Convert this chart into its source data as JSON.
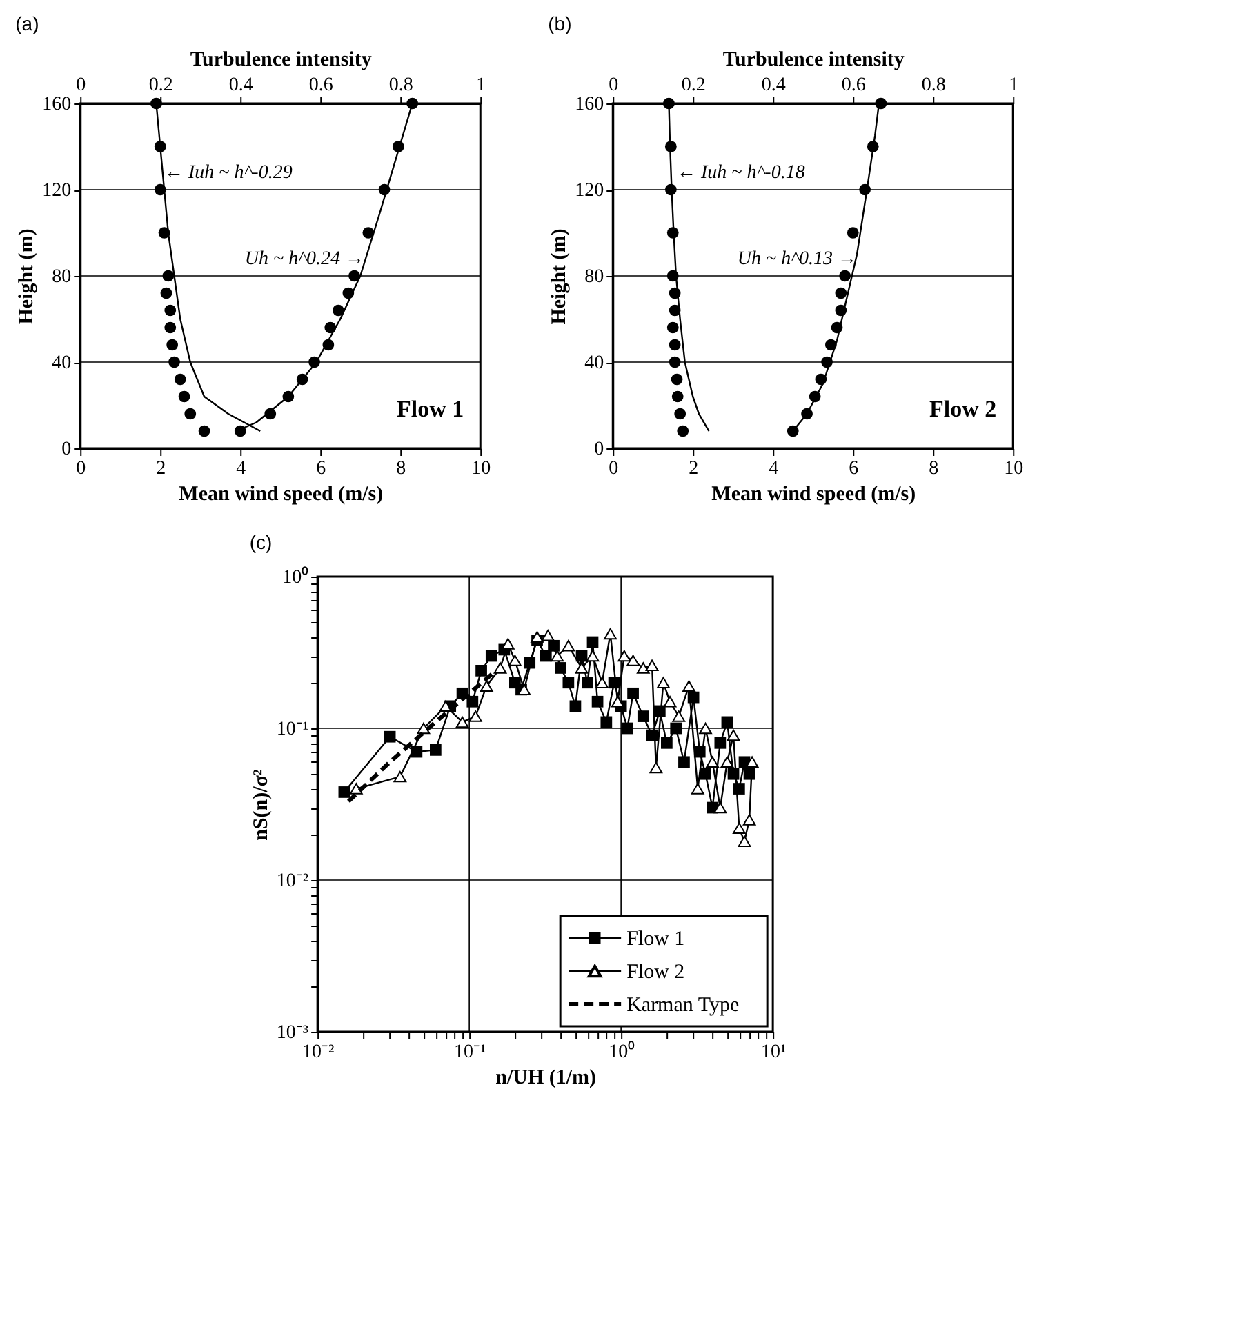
{
  "chart_data": [
    {
      "type": "scatter",
      "title": "(a)",
      "xlabel": "Mean wind speed (m/s)",
      "x2label": "Turbulence intensity",
      "ylabel": "Height (m)",
      "xlim": [
        0,
        10
      ],
      "xticks": [
        0,
        2,
        4,
        6,
        8,
        10
      ],
      "x2lim": [
        0,
        1
      ],
      "x2ticks": [
        0,
        0.2,
        0.4,
        0.6,
        0.8,
        1
      ],
      "ylim": [
        0,
        160
      ],
      "yticks": [
        0,
        40,
        80,
        120,
        160
      ],
      "grid": "y",
      "series": [
        {
          "axis": "x2",
          "color": "#000000",
          "marker": "circle",
          "x": [
            0.19,
            0.2,
            0.2,
            0.21,
            0.22,
            0.215,
            0.225,
            0.225,
            0.23,
            0.235,
            0.25,
            0.26,
            0.275,
            0.31
          ],
          "values": [
            160,
            140,
            120,
            100,
            80,
            72,
            64,
            56,
            48,
            40,
            32,
            24,
            16,
            8
          ]
        },
        {
          "color": "#000000",
          "marker": "circle",
          "x": [
            8.3,
            7.95,
            7.6,
            7.2,
            6.85,
            6.7,
            6.45,
            6.25,
            6.2,
            5.85,
            5.55,
            5.2,
            4.75,
            4.0
          ],
          "values": [
            160,
            140,
            120,
            100,
            80,
            72,
            64,
            56,
            48,
            40,
            32,
            24,
            16,
            8
          ]
        },
        {
          "type": "line",
          "axis": "x2",
          "color": "#000000",
          "marker": "none",
          "x": [
            0.19,
            0.2,
            0.21,
            0.22,
            0.235,
            0.25,
            0.275,
            0.31,
            0.37,
            0.45
          ],
          "values": [
            160,
            140,
            120,
            100,
            80,
            60,
            40,
            24,
            16,
            8
          ]
        },
        {
          "type": "line",
          "color": "#000000",
          "marker": "none",
          "x": [
            3.9,
            4.4,
            5.2,
            5.9,
            6.5,
            7.0,
            7.5,
            7.9,
            8.3
          ],
          "values": [
            8,
            12,
            24,
            40,
            60,
            80,
            110,
            135,
            160
          ]
        }
      ],
      "annotations": [
        {
          "text": "← Iuh ~ h^-0.29",
          "x": 2.1,
          "y": 128
        },
        {
          "text": "Uh ~ h^0.24 →",
          "x": 7.1,
          "y": 88
        },
        "Flow 1"
      ]
    },
    {
      "type": "scatter",
      "title": "(b)",
      "xlabel": "Mean wind speed (m/s)",
      "x2label": "Turbulence intensity",
      "ylabel": "Height (m)",
      "xlim": [
        0,
        10
      ],
      "xticks": [
        0,
        2,
        4,
        6,
        8,
        10
      ],
      "x2lim": [
        0,
        1
      ],
      "x2ticks": [
        0,
        0.2,
        0.4,
        0.6,
        0.8,
        1
      ],
      "ylim": [
        0,
        160
      ],
      "yticks": [
        0,
        40,
        80,
        120,
        160
      ],
      "grid": "y",
      "series": [
        {
          "axis": "x2",
          "color": "#000000",
          "marker": "circle",
          "x": [
            0.14,
            0.145,
            0.145,
            0.15,
            0.15,
            0.155,
            0.155,
            0.15,
            0.155,
            0.155,
            0.16,
            0.162,
            0.168,
            0.175
          ],
          "values": [
            160,
            140,
            120,
            100,
            80,
            72,
            64,
            56,
            48,
            40,
            32,
            24,
            16,
            8
          ]
        },
        {
          "color": "#000000",
          "marker": "circle",
          "x": [
            6.7,
            6.5,
            6.3,
            6.0,
            5.8,
            5.7,
            5.7,
            5.6,
            5.45,
            5.35,
            5.2,
            5.05,
            4.85,
            4.5
          ],
          "values": [
            160,
            140,
            120,
            100,
            80,
            72,
            64,
            56,
            48,
            40,
            32,
            24,
            16,
            8
          ]
        },
        {
          "type": "line",
          "axis": "x2",
          "color": "#000000",
          "marker": "none",
          "x": [
            0.14,
            0.143,
            0.147,
            0.152,
            0.158,
            0.168,
            0.18,
            0.2,
            0.215,
            0.24
          ],
          "values": [
            160,
            140,
            120,
            100,
            80,
            60,
            40,
            24,
            16,
            8
          ]
        },
        {
          "type": "line",
          "color": "#000000",
          "marker": "none",
          "x": [
            4.5,
            4.85,
            5.25,
            5.6,
            5.85,
            6.1,
            6.35,
            6.55,
            6.65
          ],
          "values": [
            8,
            16,
            30,
            50,
            70,
            90,
            120,
            145,
            160
          ]
        }
      ],
      "annotations": [
        {
          "text": "← Iuh ~ h^-0.18",
          "x": 1.6,
          "y": 128
        },
        {
          "text": "Uh ~ h^0.13 →",
          "x": 6.1,
          "y": 88
        },
        "Flow 2"
      ]
    },
    {
      "type": "line",
      "title": "(c)",
      "xlabel": "n/UH (1/m)",
      "ylabel": "nS(n)/σ²",
      "log": "xy",
      "grid": true,
      "legend": "bottom right",
      "xlim": [
        0.01,
        10
      ],
      "ylim": [
        0.001,
        1
      ],
      "xticks": [
        {
          "value": 0.01,
          "label": "10⁻²"
        },
        {
          "value": 0.02,
          "label": null
        },
        {
          "value": 0.03,
          "label": null
        },
        {
          "value": 0.04,
          "label": null
        },
        {
          "value": 0.05,
          "label": null
        },
        {
          "value": 0.06,
          "label": null
        },
        {
          "value": 0.07,
          "label": null
        },
        {
          "value": 0.08,
          "label": null
        },
        {
          "value": 0.09,
          "label": null
        },
        {
          "value": 0.1,
          "label": "10⁻¹"
        },
        {
          "value": 0.2,
          "label": null
        },
        {
          "value": 0.3,
          "label": null
        },
        {
          "value": 0.4,
          "label": null
        },
        {
          "value": 0.5,
          "label": null
        },
        {
          "value": 0.6,
          "label": null
        },
        {
          "value": 0.7,
          "label": null
        },
        {
          "value": 0.8,
          "label": null
        },
        {
          "value": 0.9,
          "label": null
        },
        {
          "value": 1,
          "label": "10⁰"
        },
        {
          "value": 2,
          "label": null
        },
        {
          "value": 3,
          "label": null
        },
        {
          "value": 4,
          "label": null
        },
        {
          "value": 5,
          "label": null
        },
        {
          "value": 6,
          "label": null
        },
        {
          "value": 7,
          "label": null
        },
        {
          "value": 8,
          "label": null
        },
        {
          "value": 9,
          "label": null
        },
        {
          "value": 10,
          "label": "10¹"
        }
      ],
      "yticks": [
        {
          "value": 0.001,
          "label": "10⁻³"
        },
        {
          "value": 0.002,
          "label": null
        },
        {
          "value": 0.003,
          "label": null
        },
        {
          "value": 0.004,
          "label": null
        },
        {
          "value": 0.005,
          "label": null
        },
        {
          "value": 0.006,
          "label": null
        },
        {
          "value": 0.007,
          "label": null
        },
        {
          "value": 0.008,
          "label": null
        },
        {
          "value": 0.009,
          "label": null
        },
        {
          "value": 0.01,
          "label": "10⁻²"
        },
        {
          "value": 0.02,
          "label": null
        },
        {
          "value": 0.03,
          "label": null
        },
        {
          "value": 0.04,
          "label": null
        },
        {
          "value": 0.05,
          "label": null
        },
        {
          "value": 0.06,
          "label": null
        },
        {
          "value": 0.07,
          "label": null
        },
        {
          "value": 0.08,
          "label": null
        },
        {
          "value": 0.09,
          "label": null
        },
        {
          "value": 0.1,
          "label": "10⁻¹"
        },
        {
          "value": 0.2,
          "label": null
        },
        {
          "value": 0.3,
          "label": null
        },
        {
          "value": 0.4,
          "label": null
        },
        {
          "value": 0.5,
          "label": null
        },
        {
          "value": 0.6,
          "label": null
        },
        {
          "value": 0.7,
          "label": null
        },
        {
          "value": 0.8,
          "label": null
        },
        {
          "value": 0.9,
          "label": null
        },
        {
          "value": 1,
          "label": "10⁰"
        }
      ],
      "series": [
        {
          "name": "Flow 1",
          "color": "#000000",
          "marker": "square",
          "line_style": "solid",
          "x": [
            0.015,
            0.03,
            0.045,
            0.06,
            0.075,
            0.09,
            0.105,
            0.12,
            0.14,
            0.17,
            0.2,
            0.22,
            0.25,
            0.28,
            0.32,
            0.36,
            0.4,
            0.45,
            0.5,
            0.55,
            0.6,
            0.65,
            0.7,
            0.8,
            0.9,
            1.0,
            1.1,
            1.2,
            1.4,
            1.6,
            1.8,
            2.0,
            2.3,
            2.6,
            3.0,
            3.3,
            3.6,
            4.0,
            4.5,
            5.0,
            5.5,
            6.0,
            6.5,
            7.0
          ],
          "values": [
            0.038,
            0.088,
            0.07,
            0.072,
            0.14,
            0.17,
            0.15,
            0.24,
            0.3,
            0.33,
            0.2,
            0.18,
            0.27,
            0.38,
            0.3,
            0.35,
            0.25,
            0.2,
            0.14,
            0.3,
            0.2,
            0.37,
            0.15,
            0.11,
            0.2,
            0.14,
            0.1,
            0.17,
            0.12,
            0.09,
            0.13,
            0.08,
            0.1,
            0.06,
            0.16,
            0.07,
            0.05,
            0.03,
            0.08,
            0.11,
            0.05,
            0.04,
            0.06,
            0.05
          ]
        },
        {
          "name": "Flow 2",
          "color": "#000000",
          "marker": "triangle",
          "line_style": "solid",
          "x": [
            0.018,
            0.035,
            0.05,
            0.07,
            0.09,
            0.11,
            0.13,
            0.16,
            0.18,
            0.2,
            0.23,
            0.28,
            0.33,
            0.38,
            0.45,
            0.55,
            0.65,
            0.75,
            0.85,
            0.95,
            1.05,
            1.2,
            1.4,
            1.6,
            1.7,
            1.9,
            2.1,
            2.4,
            2.8,
            3.2,
            3.6,
            4.0,
            4.5,
            5.0,
            5.5,
            6.0,
            6.5,
            7.0,
            7.3
          ],
          "values": [
            0.04,
            0.048,
            0.1,
            0.14,
            0.11,
            0.12,
            0.19,
            0.25,
            0.36,
            0.28,
            0.18,
            0.4,
            0.41,
            0.3,
            0.35,
            0.25,
            0.3,
            0.2,
            0.42,
            0.15,
            0.3,
            0.28,
            0.25,
            0.26,
            0.055,
            0.2,
            0.15,
            0.12,
            0.19,
            0.04,
            0.1,
            0.06,
            0.03,
            0.06,
            0.09,
            0.022,
            0.018,
            0.025,
            0.06
          ]
        },
        {
          "name": "Karman Type",
          "color": "#000000",
          "marker": "none",
          "line_style": "dashed",
          "x": [
            0.016,
            0.03,
            0.06,
            0.1,
            0.15
          ],
          "values": [
            0.033,
            0.06,
            0.11,
            0.17,
            0.24
          ]
        }
      ]
    }
  ]
}
